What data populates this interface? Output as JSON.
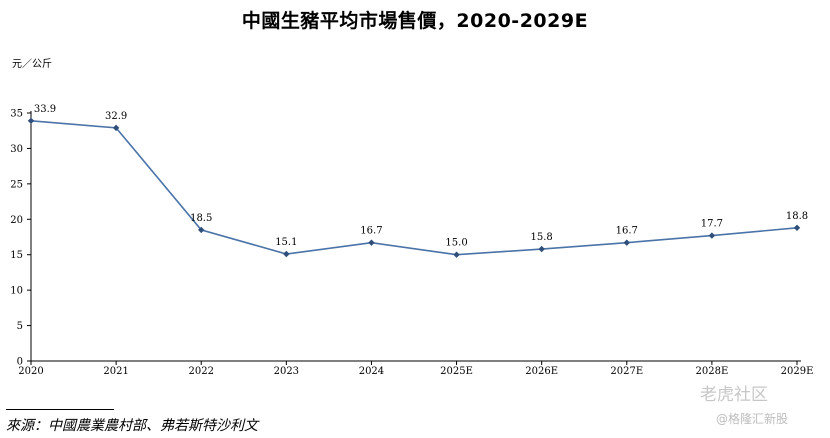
{
  "title": "中國生豬平均市場售價，2020-2029E",
  "unit_label": "元／公斤",
  "source": "來源：中國農業農村部、弗若斯特沙利文",
  "watermark": {
    "brand": "老虎社区",
    "handle": "@格隆汇新股"
  },
  "chart_data": {
    "type": "line",
    "title": "中國生豬平均市場售價，2020-2029E",
    "ylabel": "元／公斤",
    "xlabel": "",
    "categories": [
      "2020",
      "2021",
      "2022",
      "2023",
      "2024",
      "2025E",
      "2026E",
      "2027E",
      "2028E",
      "2029E"
    ],
    "series": [
      {
        "values": [
          33.9,
          32.9,
          18.5,
          15.1,
          16.7,
          15.0,
          15.8,
          16.7,
          17.7,
          18.8
        ]
      }
    ],
    "data_labels": [
      "33.9",
      "32.9",
      "18.5",
      "15.1",
      "16.7",
      "15.0",
      "15.8",
      "16.7",
      "17.7",
      "18.8"
    ],
    "ylim": [
      0,
      35
    ],
    "yticks": [
      0,
      5,
      10,
      15,
      20,
      25,
      30,
      35
    ],
    "grid": false,
    "legend": "none",
    "colors": {
      "line": "#4a73a8",
      "marker": "#2f4f7a"
    }
  }
}
